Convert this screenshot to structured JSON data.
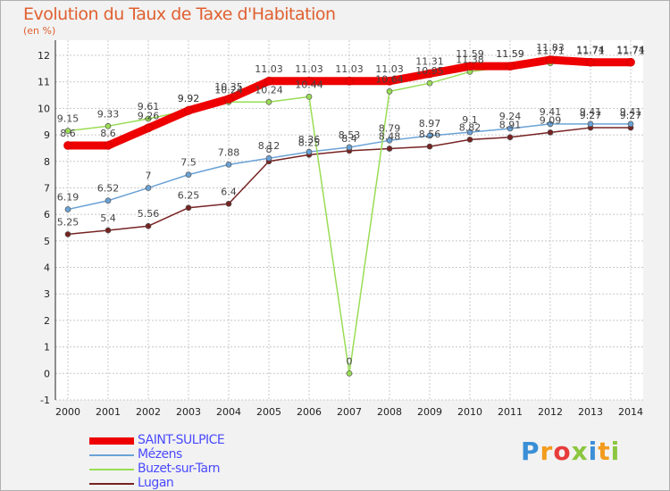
{
  "header": {
    "title": "Evolution du Taux de Taxe d'Habitation",
    "subtitle": "(en %)"
  },
  "logo": {
    "text": "Proxiti"
  },
  "colors": {
    "frame_bg": "#f2f2f2",
    "plot_bg": "#ffffff",
    "grid": "#c8c8c8",
    "title": "#e06030",
    "legend_text": "#4a4aff"
  },
  "chart_data": {
    "type": "line",
    "title": "Evolution du Taux de Taxe d'Habitation",
    "ylabel": "(en %)",
    "xlabel": "",
    "x": [
      "2000",
      "2001",
      "2002",
      "2003",
      "2004",
      "2005",
      "2006",
      "2007",
      "2008",
      "2009",
      "2010",
      "2011",
      "2012",
      "2013",
      "2014"
    ],
    "ylim": [
      -1,
      12
    ],
    "yticks": [
      "-1",
      "0",
      "1",
      "2",
      "3",
      "4",
      "5",
      "6",
      "7",
      "8",
      "9",
      "10",
      "11",
      "12"
    ],
    "grid": true,
    "legend_position": "bottom-left",
    "series": [
      {
        "name": "SAINT-SULPICE",
        "color": "#ee0000",
        "values": [
          8.6,
          8.6,
          9.26,
          9.92,
          10.35,
          11.03,
          11.03,
          11.03,
          11.03,
          11.31,
          11.59,
          11.59,
          11.83,
          11.74,
          11.74
        ],
        "labels": [
          "8.6",
          "8.6",
          "9.26",
          "9.92",
          "10.35",
          "11.03",
          "11.03",
          "11.03",
          "11.03",
          "11.31",
          "11.59",
          "11.59",
          "11.83",
          "11.74",
          "11.74"
        ]
      },
      {
        "name": "Mézens",
        "color": "#6aa2d6",
        "values": [
          6.19,
          6.52,
          7,
          7.5,
          7.88,
          8.12,
          8.36,
          8.53,
          8.79,
          8.97,
          9.1,
          9.24,
          9.41,
          9.41,
          9.41
        ],
        "labels": [
          "6.19",
          "6.52",
          "7",
          "7.5",
          "7.88",
          "8.12",
          "8.36",
          "8.53",
          "8.79",
          "8.97",
          "9.1",
          "9.24",
          "9.41",
          "9.41",
          "9.41"
        ]
      },
      {
        "name": "Buzet-sur-Tarn",
        "color": "#99dd55",
        "values": [
          9.15,
          9.33,
          9.61,
          9.92,
          10.24,
          10.24,
          10.44,
          0,
          10.64,
          10.95,
          11.38,
          11.59,
          11.71,
          11.71,
          11.71
        ],
        "labels": [
          "9.15",
          "9.33",
          "9.61",
          "9.92",
          "10.24",
          "10.24",
          "10.44",
          "0",
          "10.64",
          "10.95",
          "11.38",
          "11.59",
          "11.71",
          "11.71",
          "11.71"
        ]
      },
      {
        "name": "Lugan",
        "color": "#772222",
        "values": [
          5.25,
          5.4,
          5.56,
          6.25,
          6.4,
          8,
          8.25,
          8.4,
          8.48,
          8.56,
          8.82,
          8.91,
          9.09,
          9.27,
          9.27
        ],
        "labels": [
          "5.25",
          "5.4",
          "5.56",
          "6.25",
          "6.4",
          "8",
          "8.25",
          "8.4",
          "8.48",
          "8.56",
          "8.82",
          "8.91",
          "9.09",
          "9.27",
          "9.27"
        ]
      }
    ]
  }
}
